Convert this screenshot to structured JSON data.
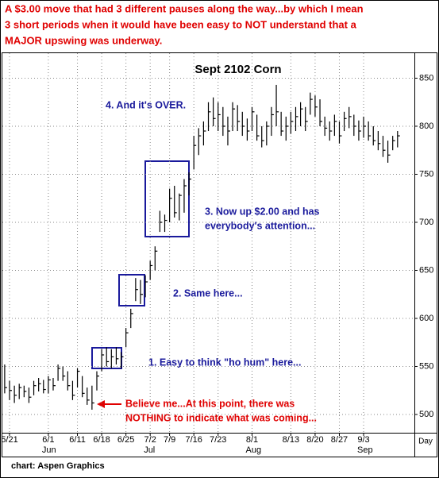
{
  "chart_data": {
    "type": "hlc",
    "header": [
      "A $3.00 move that had 3 different pauses along the way...by which I mean",
      "3 short periods when it would have been easy to NOT understand that a",
      "MAJOR upswing was underway."
    ],
    "title": "Sept 2102 Corn",
    "annotations": {
      "over": "4. And it's OVER.",
      "three": [
        "3. Now up $2.00 and has",
        "everybody's attention..."
      ],
      "two": "2. Same here...",
      "one": "1. Easy to think \"ho hum\" here...",
      "believe": [
        "Believe me...At this point, there was",
        "NOTHING to indicate what was coming..."
      ]
    },
    "x_label": "Day",
    "source": "chart: Aspen Graphics",
    "color": "#000000",
    "grid": true,
    "categories": [
      null,
      "5/21",
      null,
      null,
      null,
      null,
      null,
      null,
      null,
      "6/1",
      null,
      null,
      null,
      null,
      null,
      "6/11",
      null,
      null,
      null,
      null,
      "6/18",
      null,
      null,
      null,
      null,
      "6/25",
      null,
      null,
      null,
      null,
      "7/2",
      null,
      null,
      null,
      "7/9",
      null,
      null,
      null,
      null,
      "7/16",
      null,
      null,
      null,
      null,
      "7/23",
      null,
      null,
      null,
      null,
      null,
      null,
      "8/1",
      null,
      null,
      null,
      null,
      null,
      null,
      null,
      "8/13",
      null,
      null,
      null,
      null,
      "8/20",
      null,
      null,
      null,
      null,
      "8/27",
      null,
      null,
      null,
      null,
      "9/3",
      null,
      null,
      null,
      null,
      null,
      null,
      null
    ],
    "months": [
      null,
      null,
      null,
      null,
      null,
      null,
      null,
      null,
      null,
      "Jun",
      null,
      null,
      null,
      null,
      null,
      null,
      null,
      null,
      null,
      null,
      null,
      null,
      null,
      null,
      null,
      null,
      null,
      null,
      null,
      null,
      "Jul",
      null,
      null,
      null,
      null,
      null,
      null,
      null,
      null,
      null,
      null,
      null,
      null,
      null,
      null,
      null,
      null,
      null,
      null,
      null,
      null,
      "Aug",
      null,
      null,
      null,
      null,
      null,
      null,
      null,
      null,
      null,
      null,
      null,
      null,
      null,
      null,
      null,
      null,
      null,
      null,
      null,
      null,
      null,
      null,
      "Sep",
      null,
      null,
      null,
      null,
      null,
      null,
      null
    ],
    "high": [
      552,
      535,
      530,
      532,
      530,
      528,
      535,
      538,
      536,
      540,
      538,
      552,
      550,
      545,
      535,
      548,
      540,
      528,
      530,
      545,
      568,
      570,
      568,
      570,
      565,
      590,
      610,
      642,
      640,
      645,
      660,
      675,
      712,
      708,
      735,
      738,
      730,
      745,
      752,
      790,
      798,
      805,
      825,
      830,
      825,
      820,
      810,
      825,
      822,
      815,
      808,
      820,
      812,
      800,
      805,
      820,
      843,
      815,
      810,
      815,
      820,
      825,
      820,
      835,
      832,
      828,
      810,
      805,
      812,
      805,
      815,
      820,
      812,
      806,
      810,
      805,
      800,
      795,
      790,
      785,
      790,
      795
    ],
    "low": [
      522,
      515,
      512,
      516,
      518,
      512,
      520,
      524,
      522,
      522,
      525,
      535,
      535,
      525,
      515,
      528,
      518,
      510,
      505,
      525,
      545,
      550,
      548,
      552,
      548,
      570,
      590,
      618,
      615,
      622,
      640,
      650,
      690,
      690,
      700,
      705,
      702,
      710,
      728,
      755,
      770,
      780,
      795,
      800,
      795,
      790,
      780,
      795,
      795,
      790,
      785,
      795,
      785,
      778,
      780,
      790,
      800,
      790,
      785,
      792,
      795,
      800,
      795,
      812,
      810,
      800,
      790,
      785,
      790,
      782,
      795,
      798,
      790,
      785,
      788,
      785,
      780,
      775,
      768,
      762,
      775,
      778
    ],
    "close": [
      528,
      525,
      520,
      528,
      524,
      518,
      530,
      532,
      526,
      536,
      530,
      548,
      540,
      530,
      520,
      545,
      522,
      515,
      512,
      540,
      562,
      555,
      560,
      558,
      560,
      585,
      605,
      630,
      625,
      638,
      655,
      670,
      700,
      702,
      725,
      710,
      728,
      738,
      745,
      780,
      790,
      795,
      815,
      808,
      812,
      800,
      795,
      818,
      805,
      800,
      795,
      815,
      790,
      785,
      800,
      812,
      815,
      795,
      800,
      805,
      810,
      818,
      805,
      828,
      820,
      805,
      798,
      795,
      805,
      790,
      808,
      810,
      800,
      795,
      800,
      790,
      785,
      782,
      775,
      770,
      785,
      790
    ],
    "ylim": [
      481,
      876
    ],
    "yticks": [
      500,
      550,
      600,
      650,
      700,
      750,
      800,
      850
    ]
  }
}
